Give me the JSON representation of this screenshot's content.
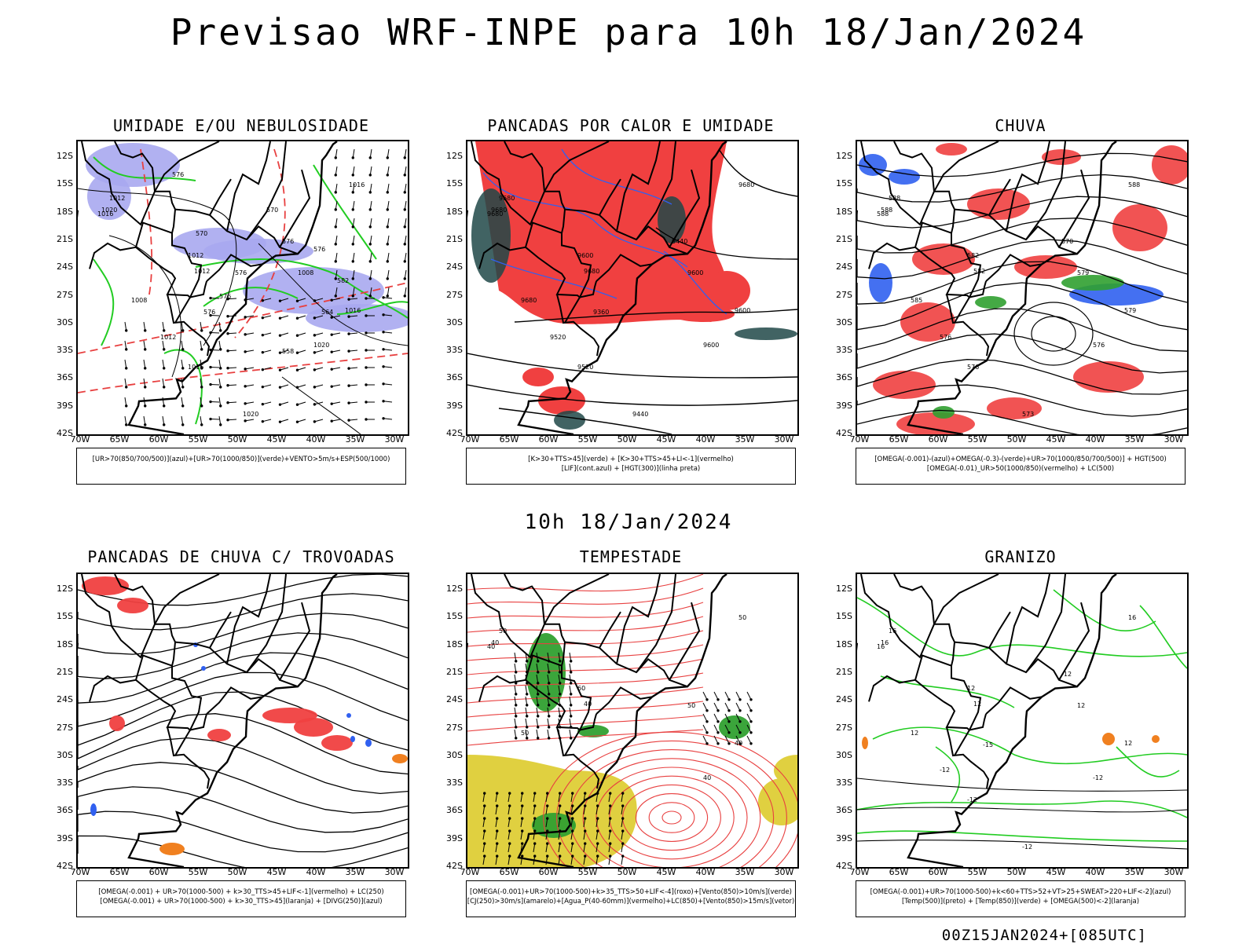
{
  "page": {
    "title": "Previsao WRF-INPE  para 10h 18/Jan/2024",
    "mid_title": "10h 18/Jan/2024",
    "footer": "00Z15JAN2024+[085UTC]"
  },
  "axes": {
    "lat_labels": [
      "12S",
      "15S",
      "18S",
      "21S",
      "24S",
      "27S",
      "30S",
      "33S",
      "36S",
      "39S",
      "42S"
    ],
    "lon_labels": [
      "70W",
      "65W",
      "60W",
      "55W",
      "50W",
      "45W",
      "40W",
      "35W",
      "30W"
    ]
  },
  "colors": {
    "blue_fill": "#a9a9f0",
    "green_line": "#22cc22",
    "red_fill": "#f04040",
    "red_dash": "#e84040",
    "blue_line": "#3060f0",
    "dark_teal": "#204848",
    "yellow_fill": "#e0d040",
    "green_fill": "#30a030",
    "orange": "#f08020",
    "purple": "#9030c0"
  },
  "panels": [
    {
      "title": "UMIDADE E/OU NEBULOSIDADE",
      "legend": [
        "[UR>70(850/700/500)](azul)+[UR>70(1000/850)](verde)+VENTO>5m/s+ESP(500/1000)"
      ],
      "contour_labels": [
        "1012",
        "1016",
        "1020",
        "1016",
        "1008",
        "1012",
        "1012",
        "1008",
        "1016",
        "1020",
        "1012",
        "1016",
        "1020",
        "576",
        "576",
        "576",
        "576",
        "570",
        "570",
        "576",
        "564",
        "558",
        "576",
        "582"
      ]
    },
    {
      "title": "PANCADAS POR CALOR E UMIDADE",
      "legend": [
        "[K>30+TTS>45](verde)  +  [K>30+TTS>45+LI<-1](vermelho)",
        "[LIF](cont.azul)  +  [HGT(300)](linha preta)"
      ],
      "contour_labels": [
        "9680",
        "9680",
        "9680",
        "9680",
        "9680",
        "9600",
        "9680",
        "9600",
        "9600",
        "9600",
        "9520",
        "9520",
        "9440",
        "9440",
        "9360"
      ]
    },
    {
      "title": "CHUVA",
      "legend": [
        "[OMEGA(-0.001)-(azul)+OMEGA(-0.3)-(verde)+UR>70(1000/850/700/500)]  +  HGT(500)",
        "[OMEGA(-0.01)_UR>50(1000/850)(vermelho)  +  LC(500)"
      ],
      "contour_labels": [
        "588",
        "588",
        "588",
        "588",
        "585",
        "582",
        "582",
        "579",
        "579",
        "576",
        "576",
        "576",
        "573",
        "570"
      ]
    },
    {
      "title": "PANCADAS DE CHUVA C/ TROVOADAS",
      "legend": [
        "[OMEGA(-0.001)  +  UR>70(1000-500)  +  k>30_TTS>45+LIF<-1](vermelho)  +  LC(250)",
        "[OMEGA(-0.001)  +  UR>70(1000-500)  +  k>30_TTS>45](laranja)  +  [DIVG(250)](azul)"
      ],
      "contour_labels": []
    },
    {
      "title": "TEMPESTADE",
      "legend": [
        "[OMEGA(-0.001)+UR>70(1000-500)+k>35_TTS>50+LIF<-4](roxo)+[Vento(850)>10m/s](verde)",
        "[CJ(250)>30m/s](amarelo)+[Agua_P(40-60mm)](vermelho)+LC(850)+[Vento(850)>15m/s](vetor)"
      ],
      "contour_labels": [
        "50",
        "50",
        "40",
        "40",
        "50",
        "60",
        "40",
        "50",
        "40",
        "40"
      ]
    },
    {
      "title": "GRANIZO",
      "legend": [
        "[OMEGA(-0.001)+UR>70(1000-500)+k<60+TTS>52+VT>25+SWEAT>220+LIF<-2](azul)",
        "[Temp(500)](preto)  +  [Temp(850)](verde)  +  [OMEGA(500)<-2](laranja)"
      ],
      "contour_labels": [
        "16",
        "16",
        "16",
        "16",
        "12",
        "12",
        "12",
        "12",
        "12",
        "-12",
        "-12",
        "-12",
        "-12",
        "-12",
        "-15"
      ]
    }
  ]
}
